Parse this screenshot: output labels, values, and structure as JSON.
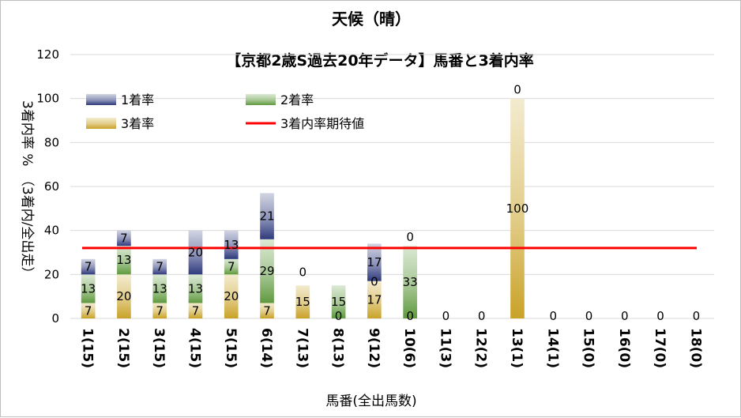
{
  "chart_data": {
    "type": "bar",
    "stacked": true,
    "title": "天候（晴）",
    "subtitle": "【京都2歳S過去20年データ】馬番と3着内率",
    "xlabel": "馬番(全出馬数)",
    "ylabel": "3着内率 %　（3着内/全出走）",
    "ylim": [
      0,
      120
    ],
    "yticks": [
      0,
      20,
      40,
      60,
      80,
      100,
      120
    ],
    "categories": [
      "1(15)",
      "2(15)",
      "3(15)",
      "4(15)",
      "5(15)",
      "6(14)",
      "7(13)",
      "8(13)",
      "9(12)",
      "10(6)",
      "11(3)",
      "12(2)",
      "13(1)",
      "14(1)",
      "15(0)",
      "16(0)",
      "17(0)",
      "18(0)"
    ],
    "series": [
      {
        "name": "3着率",
        "color": "#c9a227",
        "values": [
          7,
          20,
          7,
          7,
          20,
          7,
          15,
          0,
          17,
          0,
          0,
          0,
          100,
          0,
          0,
          0,
          0,
          0
        ]
      },
      {
        "name": "2着率",
        "color": "#5f9a3e",
        "values": [
          13,
          13,
          13,
          13,
          7,
          29,
          0,
          15,
          0,
          33,
          0,
          0,
          0,
          0,
          0,
          0,
          0,
          0
        ]
      },
      {
        "name": "1着率",
        "color": "#2f3a7d",
        "values": [
          7,
          7,
          7,
          20,
          13,
          21,
          0,
          0,
          17,
          0,
          0,
          0,
          0,
          0,
          0,
          0,
          0,
          0
        ]
      }
    ],
    "bar_labels": {
      "3着率": [
        "7",
        "20",
        "7",
        "7",
        "20",
        "7",
        "15",
        "0",
        "17",
        "0",
        "0",
        "0",
        "100",
        "0",
        "0",
        "0",
        "0",
        "0"
      ],
      "2着率": [
        "13",
        "13",
        "13",
        "13",
        "7",
        "29",
        "",
        "15",
        "0",
        "33",
        "",
        "",
        "",
        "",
        "",
        "",
        "",
        ""
      ],
      "1着率": [
        "7",
        "7",
        "7",
        "20",
        "13",
        "21",
        "0",
        "",
        "17",
        "0",
        "",
        "",
        "0",
        "",
        "",
        "",
        "",
        ""
      ]
    },
    "reference_line": {
      "name": "3着内率期待値",
      "value": 32,
      "color": "#ff0000"
    },
    "legend": [
      "1着率",
      "2着率",
      "3着率",
      "3着内率期待値"
    ],
    "legend_position": "top-left",
    "grid": true
  }
}
